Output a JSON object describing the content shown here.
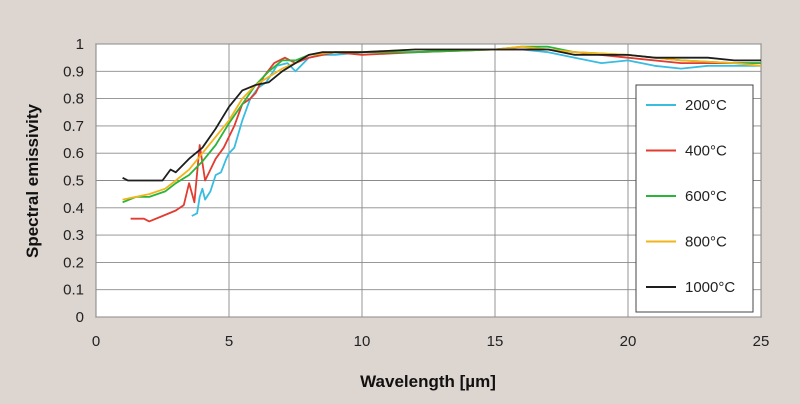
{
  "chart_data": {
    "type": "line",
    "title": "",
    "xlabel": "Wavelength [µm]",
    "ylabel": "Spectral emissivity",
    "xlim": [
      0,
      25
    ],
    "ylim": [
      0,
      1
    ],
    "x_ticks": [
      0,
      5,
      10,
      15,
      20,
      25
    ],
    "y_ticks": [
      0,
      0.1,
      0.2,
      0.3,
      0.4,
      0.5,
      0.6,
      0.7,
      0.8,
      0.9,
      1
    ],
    "grid": true,
    "legend_position": "right",
    "series": [
      {
        "name": "200°C",
        "color": "#38bde0",
        "points": [
          [
            3.6,
            0.37
          ],
          [
            3.8,
            0.38
          ],
          [
            3.9,
            0.44
          ],
          [
            4.0,
            0.47
          ],
          [
            4.1,
            0.43
          ],
          [
            4.3,
            0.46
          ],
          [
            4.5,
            0.52
          ],
          [
            4.7,
            0.53
          ],
          [
            4.9,
            0.58
          ],
          [
            5.0,
            0.6
          ],
          [
            5.2,
            0.62
          ],
          [
            5.5,
            0.72
          ],
          [
            5.8,
            0.8
          ],
          [
            6.1,
            0.84
          ],
          [
            6.4,
            0.86
          ],
          [
            6.8,
            0.92
          ],
          [
            7.2,
            0.93
          ],
          [
            7.5,
            0.9
          ],
          [
            8.0,
            0.95
          ],
          [
            8.5,
            0.96
          ],
          [
            9,
            0.96
          ],
          [
            10,
            0.97
          ],
          [
            12,
            0.97
          ],
          [
            14,
            0.98
          ],
          [
            16,
            0.98
          ],
          [
            17,
            0.97
          ],
          [
            18,
            0.95
          ],
          [
            19,
            0.93
          ],
          [
            20,
            0.94
          ],
          [
            21,
            0.92
          ],
          [
            22,
            0.91
          ],
          [
            23,
            0.92
          ],
          [
            24,
            0.92
          ],
          [
            25,
            0.92
          ]
        ]
      },
      {
        "name": "400°C",
        "color": "#e23b30",
        "points": [
          [
            1.3,
            0.36
          ],
          [
            1.8,
            0.36
          ],
          [
            2.0,
            0.35
          ],
          [
            2.5,
            0.37
          ],
          [
            3.0,
            0.39
          ],
          [
            3.3,
            0.41
          ],
          [
            3.5,
            0.49
          ],
          [
            3.7,
            0.42
          ],
          [
            3.9,
            0.63
          ],
          [
            4.1,
            0.5
          ],
          [
            4.3,
            0.54
          ],
          [
            4.5,
            0.58
          ],
          [
            4.8,
            0.62
          ],
          [
            5.2,
            0.7
          ],
          [
            5.5,
            0.78
          ],
          [
            5.8,
            0.8
          ],
          [
            6.0,
            0.82
          ],
          [
            6.3,
            0.88
          ],
          [
            6.7,
            0.93
          ],
          [
            7.1,
            0.95
          ],
          [
            7.5,
            0.93
          ],
          [
            8.0,
            0.95
          ],
          [
            9,
            0.97
          ],
          [
            10,
            0.96
          ],
          [
            12,
            0.97
          ],
          [
            15,
            0.98
          ],
          [
            17,
            0.98
          ],
          [
            18,
            0.97
          ],
          [
            20,
            0.95
          ],
          [
            22,
            0.93
          ],
          [
            24,
            0.93
          ],
          [
            25,
            0.93
          ]
        ]
      },
      {
        "name": "600°C",
        "color": "#2ab53a",
        "points": [
          [
            1.0,
            0.42
          ],
          [
            1.5,
            0.44
          ],
          [
            2.0,
            0.44
          ],
          [
            2.6,
            0.46
          ],
          [
            3.0,
            0.49
          ],
          [
            3.5,
            0.52
          ],
          [
            4.0,
            0.57
          ],
          [
            4.5,
            0.63
          ],
          [
            5.0,
            0.71
          ],
          [
            5.5,
            0.78
          ],
          [
            6.0,
            0.85
          ],
          [
            6.5,
            0.9
          ],
          [
            7.0,
            0.94
          ],
          [
            7.5,
            0.94
          ],
          [
            8.0,
            0.96
          ],
          [
            9,
            0.97
          ],
          [
            10,
            0.97
          ],
          [
            12,
            0.97
          ],
          [
            15,
            0.98
          ],
          [
            16,
            0.99
          ],
          [
            17,
            0.99
          ],
          [
            18,
            0.97
          ],
          [
            20,
            0.96
          ],
          [
            22,
            0.94
          ],
          [
            24,
            0.93
          ],
          [
            25,
            0.93
          ]
        ]
      },
      {
        "name": "800°C",
        "color": "#f3b41a",
        "points": [
          [
            1.0,
            0.43
          ],
          [
            1.5,
            0.44
          ],
          [
            2.0,
            0.45
          ],
          [
            2.6,
            0.47
          ],
          [
            3.0,
            0.5
          ],
          [
            3.5,
            0.54
          ],
          [
            4.0,
            0.6
          ],
          [
            4.5,
            0.66
          ],
          [
            5.0,
            0.72
          ],
          [
            5.5,
            0.8
          ],
          [
            6.0,
            0.85
          ],
          [
            6.5,
            0.88
          ],
          [
            7.0,
            0.91
          ],
          [
            7.5,
            0.93
          ],
          [
            8.0,
            0.96
          ],
          [
            9,
            0.97
          ],
          [
            10,
            0.97
          ],
          [
            12,
            0.98
          ],
          [
            15,
            0.98
          ],
          [
            16,
            0.99
          ],
          [
            17,
            0.98
          ],
          [
            18,
            0.97
          ],
          [
            20,
            0.96
          ],
          [
            22,
            0.94
          ],
          [
            24,
            0.93
          ],
          [
            25,
            0.92
          ]
        ]
      },
      {
        "name": "1000°C",
        "color": "#1e1e1e",
        "points": [
          [
            1.0,
            0.51
          ],
          [
            1.2,
            0.5
          ],
          [
            2.0,
            0.5
          ],
          [
            2.5,
            0.5
          ],
          [
            2.8,
            0.54
          ],
          [
            3.0,
            0.53
          ],
          [
            3.5,
            0.58
          ],
          [
            4.0,
            0.62
          ],
          [
            4.5,
            0.69
          ],
          [
            5.0,
            0.77
          ],
          [
            5.5,
            0.83
          ],
          [
            6.0,
            0.85
          ],
          [
            6.5,
            0.86
          ],
          [
            7.0,
            0.9
          ],
          [
            7.5,
            0.93
          ],
          [
            8.0,
            0.96
          ],
          [
            8.5,
            0.97
          ],
          [
            10,
            0.97
          ],
          [
            12,
            0.98
          ],
          [
            15,
            0.98
          ],
          [
            16,
            0.98
          ],
          [
            17,
            0.98
          ],
          [
            18,
            0.96
          ],
          [
            19,
            0.96
          ],
          [
            20,
            0.96
          ],
          [
            21,
            0.95
          ],
          [
            22,
            0.95
          ],
          [
            23,
            0.95
          ],
          [
            24,
            0.94
          ],
          [
            25,
            0.94
          ]
        ]
      }
    ]
  }
}
